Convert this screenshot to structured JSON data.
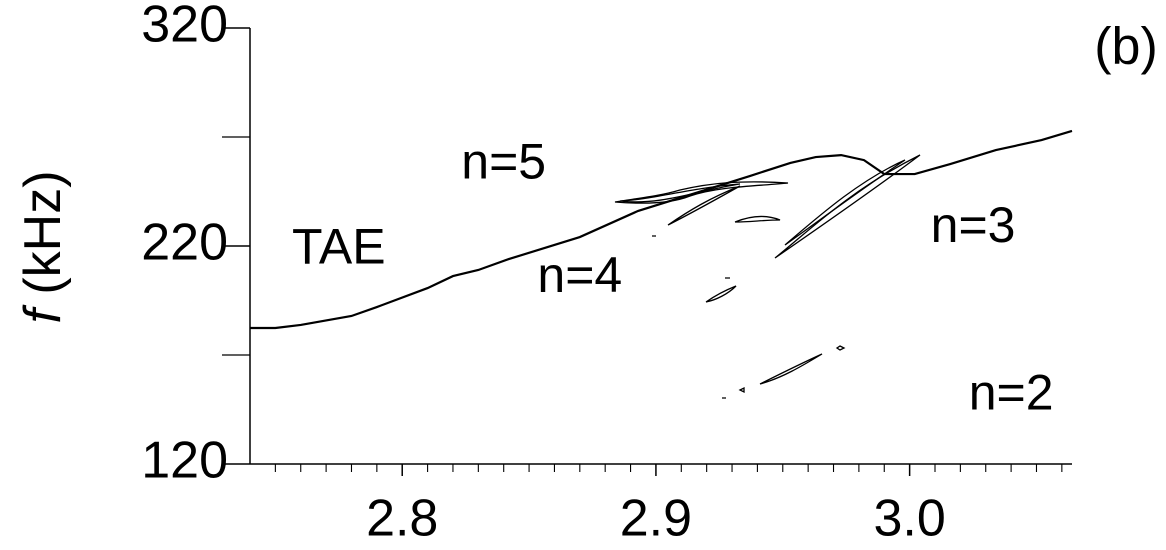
{
  "chart_data": {
    "type": "line",
    "title": "(b)",
    "ylabel_var": "f",
    "ylabel_unit": "(kHz)",
    "x": [
      2.74,
      2.75,
      2.76,
      2.78,
      2.79,
      2.81,
      2.82,
      2.83,
      2.842,
      2.87,
      2.893,
      2.917,
      2.937,
      2.953,
      2.963,
      2.973,
      2.982,
      2.99,
      3.002,
      3.016,
      3.034,
      3.052,
      3.064
    ],
    "series": [
      {
        "name": "TAE",
        "color": "#000000",
        "values": [
          182.4,
          182.4,
          183.8,
          187.9,
          192,
          200.7,
          206.2,
          209,
          214,
          224.1,
          236.1,
          244.8,
          252.1,
          258.1,
          260.8,
          261.7,
          259.4,
          253,
          253,
          257.6,
          264,
          268.6,
          272.8
        ]
      }
    ],
    "xlim": [
      2.74,
      3.064
    ],
    "xticks": [
      2.8,
      2.9,
      {
        "value": 3.0,
        "label": "3.0"
      }
    ],
    "xminor": [
      2.75,
      2.76,
      2.77,
      2.78,
      2.79,
      2.81,
      2.82,
      2.83,
      2.84,
      2.85,
      2.86,
      2.87,
      2.88,
      2.89,
      2.91,
      2.92,
      2.93,
      2.94,
      2.95,
      2.96,
      2.97,
      2.98,
      2.99,
      3.01,
      3.02,
      3.03,
      3.04,
      3.05,
      3.06
    ],
    "ylim": [
      120,
      320
    ],
    "yticks": [
      120,
      220,
      320
    ],
    "yminor": [
      170,
      270
    ],
    "annotations": [
      {
        "text": "TAE",
        "x": 2.775,
        "y": 218
      },
      {
        "text": "n=5",
        "x": 2.84,
        "y": 257
      },
      {
        "text": "n=4",
        "x": 2.87,
        "y": 205
      },
      {
        "text": "n=3",
        "x": 3.025,
        "y": 228
      },
      {
        "text": "n=2",
        "x": 3.04,
        "y": 151
      }
    ]
  }
}
